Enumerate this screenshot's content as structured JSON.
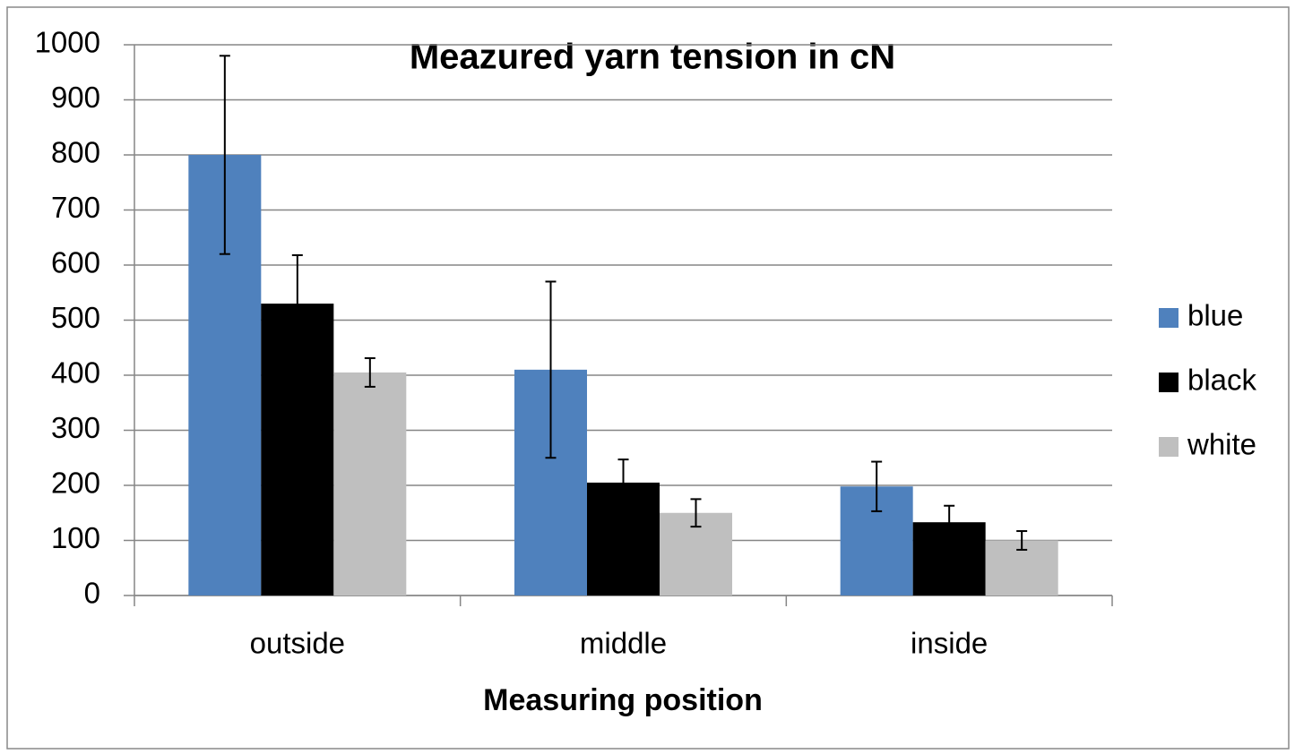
{
  "chart_data": {
    "type": "bar",
    "title": "Meazured yarn tension in cN",
    "x_label": "Measuring position",
    "categories": [
      "outside",
      "middle",
      "inside"
    ],
    "series": [
      {
        "name": "blue",
        "color": "#4f81bd",
        "values": [
          800,
          410,
          198
        ],
        "errors": [
          180,
          160,
          45
        ]
      },
      {
        "name": "black",
        "color": "#000000",
        "values": [
          530,
          205,
          133
        ],
        "errors": [
          88,
          42,
          30
        ]
      },
      {
        "name": "white",
        "color": "#bfbfbf",
        "values": [
          405,
          150,
          100
        ],
        "errors": [
          26,
          25,
          17
        ]
      }
    ],
    "ylim": [
      0,
      1000
    ],
    "yticks": [
      0,
      100,
      200,
      300,
      400,
      500,
      600,
      700,
      800,
      900,
      1000
    ],
    "grid": true,
    "legend": "right"
  }
}
